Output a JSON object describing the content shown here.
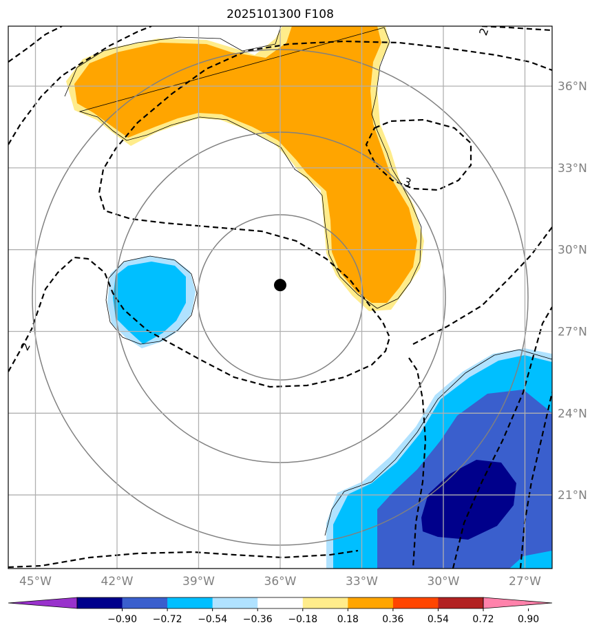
{
  "title": "2025101300 F108",
  "longitude_ticks": [
    "45°W",
    "42°W",
    "39°W",
    "36°W",
    "33°W",
    "30°W",
    "27°W"
  ],
  "latitude_ticks": [
    "36°N",
    "33°N",
    "30°N",
    "27°N",
    "24°N",
    "21°N"
  ],
  "colorbar": {
    "tick_labels": [
      "−0.90",
      "−0.72",
      "−0.54",
      "−0.36",
      "−0.18",
      "0.18",
      "0.36",
      "0.54",
      "0.72",
      "0.90"
    ],
    "colors": [
      "#9932cc",
      "#00008b",
      "#3a5fcd",
      "#00bfff",
      "#b0e2ff",
      "#ffffff",
      "#ffec8b",
      "#ffa500",
      "#ff4500",
      "#b22222",
      "#ff82ab"
    ]
  },
  "contour_labels": [
    "2",
    "3",
    "2"
  ],
  "center_marker": {
    "lon": -36.0,
    "lat": 28.7,
    "color": "#000000"
  },
  "map_extent": {
    "lon": [
      -46.0,
      -26.0
    ],
    "lat": [
      18.3,
      38.2
    ]
  },
  "grid_lines": {
    "lon": [
      -45,
      -42,
      -39,
      -36,
      -33,
      -30,
      -27
    ],
    "lat": [
      36,
      33,
      30,
      27,
      24,
      21
    ]
  },
  "range_rings_deg_lat": [
    3,
    6,
    9
  ],
  "fill_colors": {
    "orange": "#ffa500",
    "light_yellow": "#ffec8b",
    "deep_sky_blue": "#00bfff",
    "light_blue": "#b0e2ff",
    "royal_blue": "#3a5fcd",
    "dark_blue": "#00008b"
  }
}
